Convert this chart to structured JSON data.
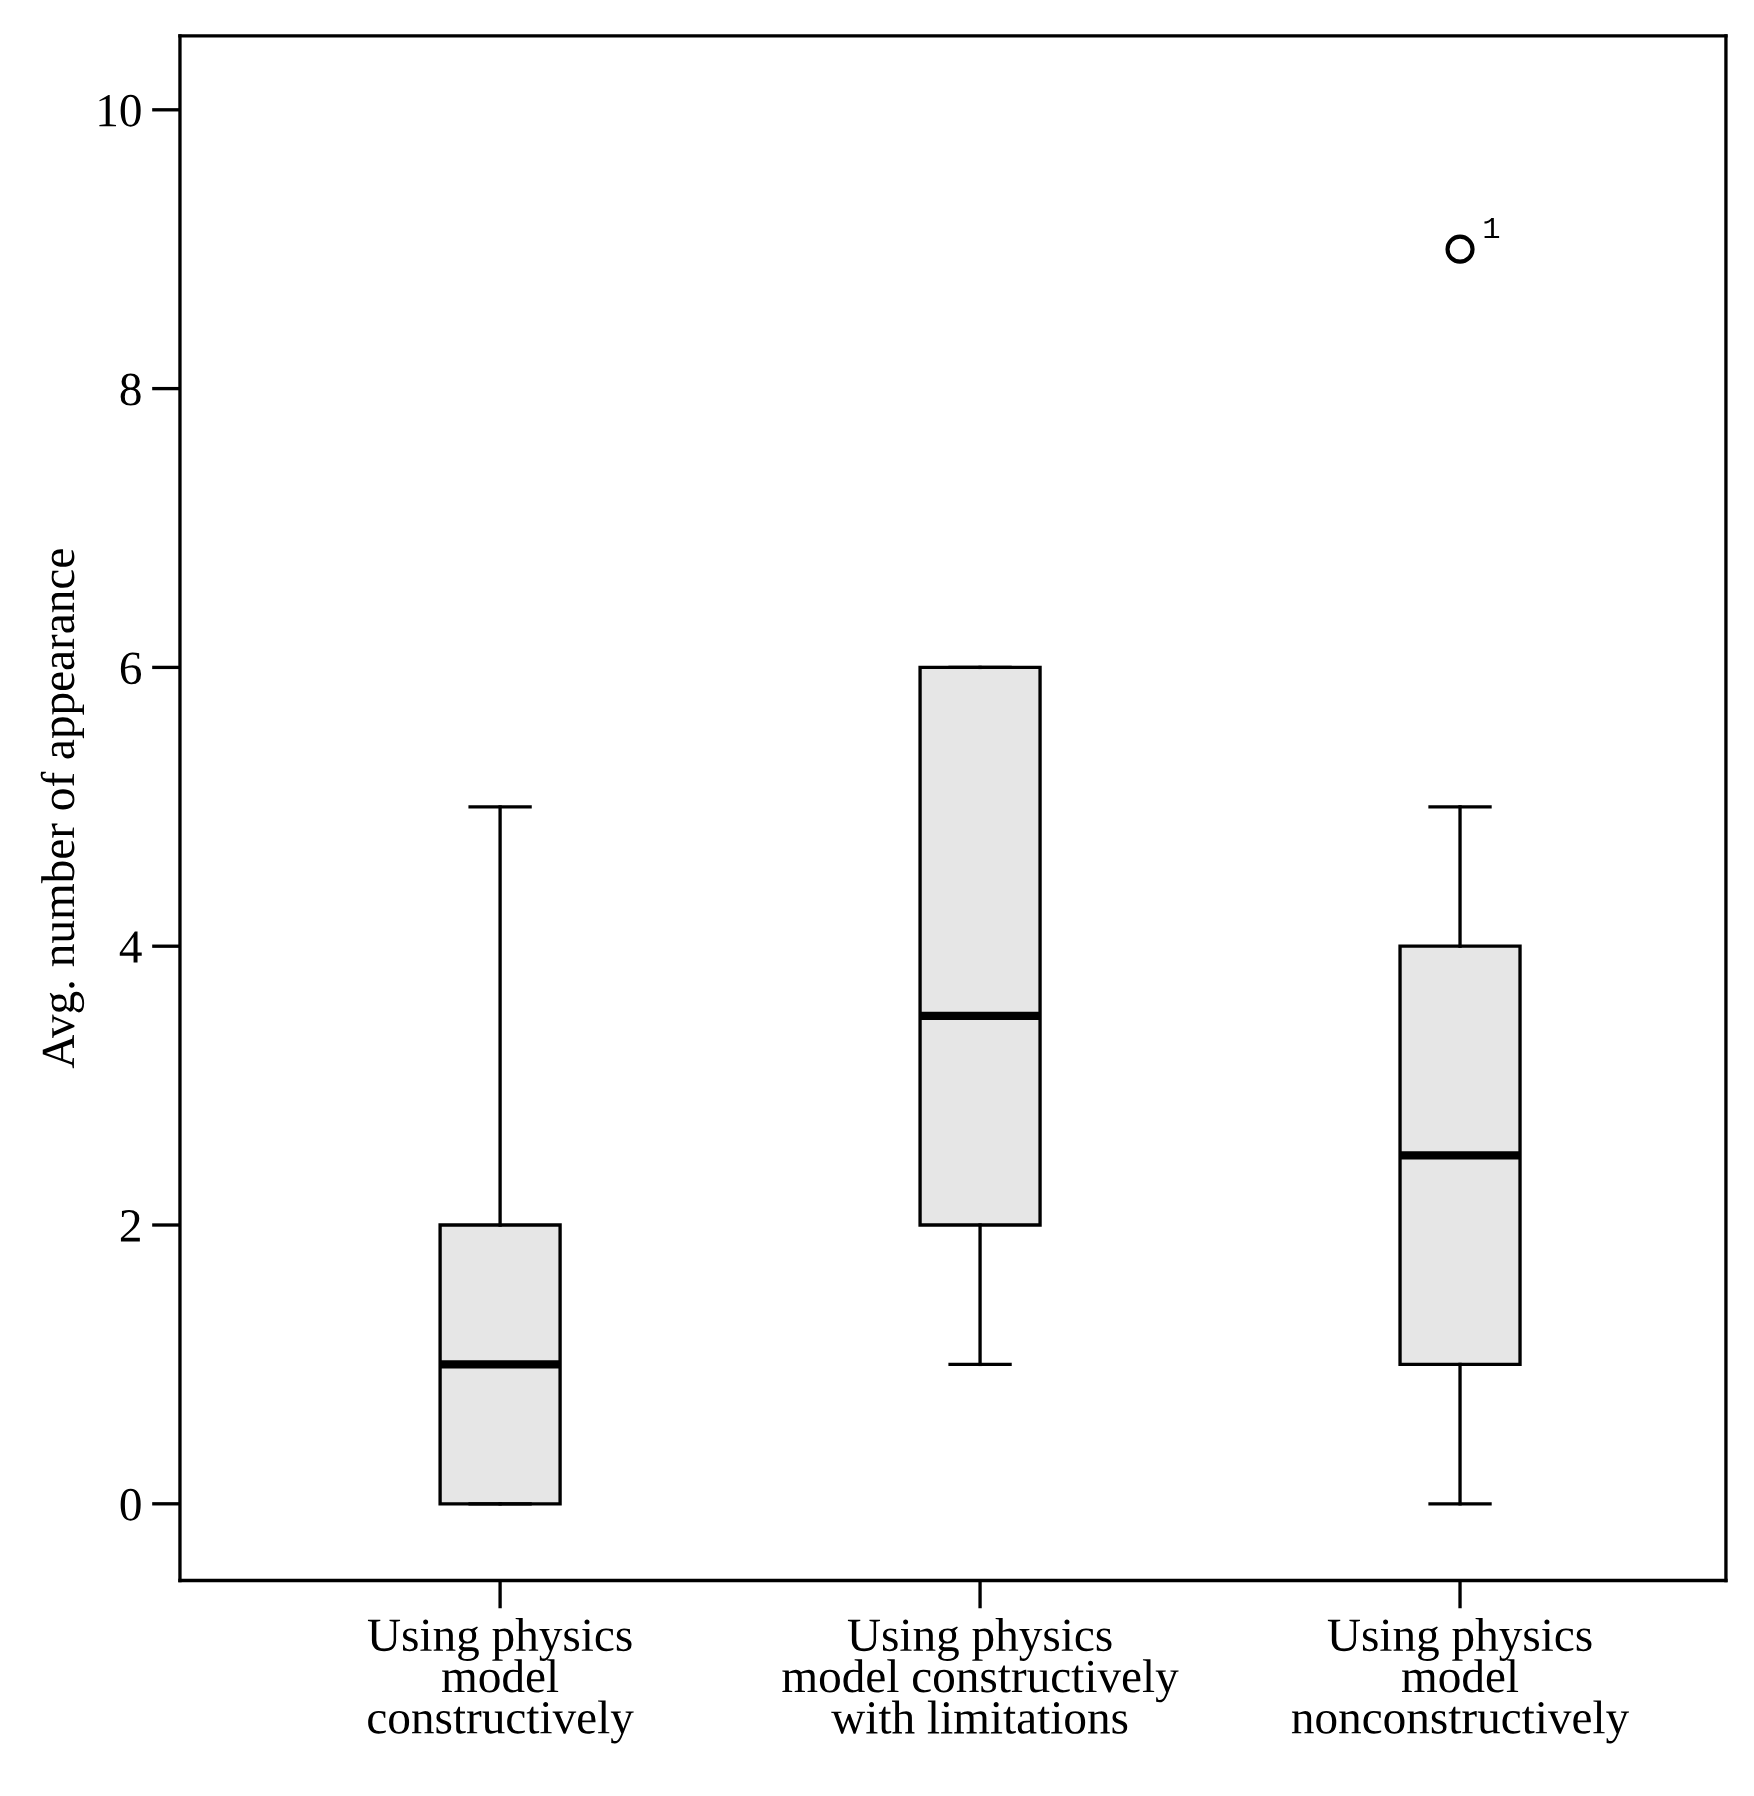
{
  "chart_data": {
    "type": "box",
    "ylabel": "Avg. number of appearance",
    "categories": [
      "Using physics\nmodel\nconstructively",
      "Using physics\nmodel constructively\nwith limitations",
      "Using physics\nmodel\nnonconstructively"
    ],
    "boxes": [
      {
        "low": 0,
        "q1": 0,
        "median": 1,
        "q3": 2,
        "high": 5
      },
      {
        "low": 1,
        "q1": 2,
        "median": 3.5,
        "q3": 6,
        "high": 6
      },
      {
        "low": 0,
        "q1": 1,
        "median": 2.5,
        "q3": 4,
        "high": 5,
        "outliers": [
          9
        ]
      }
    ],
    "color": "#e6e6e6",
    "ylim": [
      -0.55,
      10.53
    ],
    "yticks": [
      0,
      2,
      4,
      6,
      8,
      10
    ],
    "grid": false,
    "annotations": [
      "1"
    ]
  }
}
